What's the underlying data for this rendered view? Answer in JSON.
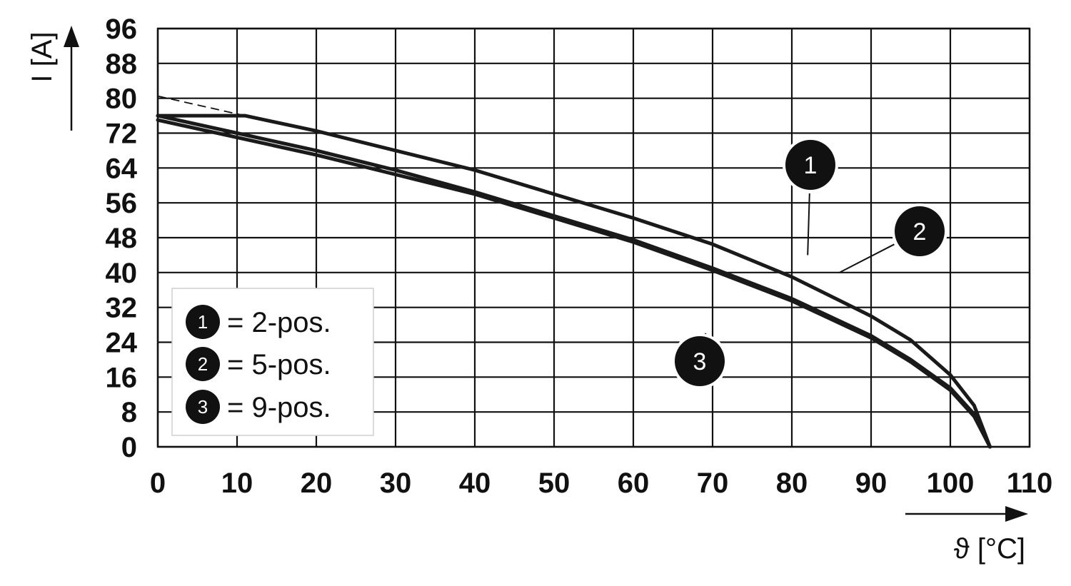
{
  "chart_data": {
    "type": "line",
    "xlabel": "ϑ [°C]",
    "ylabel": "I [A]",
    "xlim": [
      0,
      110
    ],
    "ylim": [
      0,
      96
    ],
    "x_ticks": [
      "0",
      "10",
      "20",
      "30",
      "40",
      "50",
      "60",
      "70",
      "80",
      "90",
      "100",
      "110"
    ],
    "y_ticks": [
      "0",
      "8",
      "16",
      "24",
      "32",
      "40",
      "48",
      "56",
      "64",
      "72",
      "80",
      "88",
      "96"
    ],
    "grid": true,
    "legend_placement": "bottom-left",
    "legend": [
      {
        "marker": "1",
        "text": "= 2-pos."
      },
      {
        "marker": "2",
        "text": "= 5-pos."
      },
      {
        "marker": "3",
        "text": "= 9-pos."
      }
    ],
    "series": [
      {
        "marker": "1",
        "color": "#1a1a1a",
        "x": [
          0,
          11,
          20,
          30,
          40,
          50,
          60,
          70,
          80,
          90,
          95,
          100,
          103,
          105
        ],
        "y": [
          76,
          76,
          72.5,
          68,
          63.5,
          58,
          52.5,
          46.5,
          39,
          30,
          24.5,
          16.5,
          9.5,
          0
        ]
      },
      {
        "marker": "2",
        "color": "#1a1a1a",
        "x": [
          0,
          10,
          20,
          30,
          40,
          50,
          60,
          70,
          80,
          90,
          95,
          100,
          103,
          105
        ],
        "y": [
          76,
          72,
          68,
          63.5,
          58.5,
          53,
          47.5,
          41,
          34,
          25.5,
          20,
          13.5,
          7.5,
          0
        ]
      },
      {
        "marker": "3",
        "color": "#1a1a1a",
        "x": [
          0,
          10,
          20,
          30,
          40,
          50,
          60,
          70,
          80,
          90,
          95,
          100,
          103,
          105
        ],
        "y": [
          75,
          71,
          67,
          62.5,
          58,
          52.5,
          47,
          40.5,
          33.5,
          25,
          19.5,
          13,
          7,
          0
        ]
      }
    ],
    "extrapolation": {
      "style": "dashed",
      "x": [
        0,
        11
      ],
      "y": [
        80.5,
        76
      ]
    },
    "callouts": [
      {
        "marker": "1",
        "x": 82,
        "y": 44
      },
      {
        "marker": "2",
        "x": 86,
        "y": 40
      },
      {
        "marker": "3",
        "x": 69,
        "y": 25
      }
    ]
  }
}
